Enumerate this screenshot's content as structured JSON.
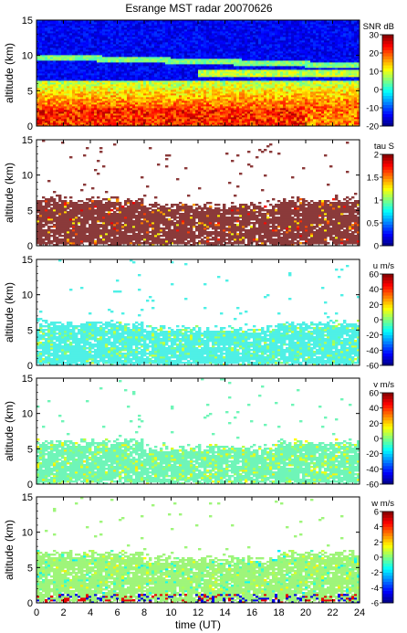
{
  "chart_data": {
    "type": "heatmap",
    "title": "Esrange MST radar 20070626",
    "xlabel": "time (UT)",
    "xlim": [
      0,
      24
    ],
    "x_ticks": [
      "0",
      "2",
      "4",
      "6",
      "8",
      "10",
      "12",
      "14",
      "16",
      "18",
      "20",
      "22",
      "24"
    ],
    "panels": [
      {
        "quantity": "SNR",
        "colorbar_label": "SNR dB",
        "ylabel": "altitude (km)",
        "ylim": [
          0,
          15
        ],
        "y_ticks": [
          "0",
          "5",
          "10",
          "15"
        ],
        "clim": [
          -20,
          30
        ],
        "colorbar_ticks": [
          "-20",
          "-10",
          "0",
          "10",
          "20",
          "30"
        ],
        "background_color": "#2a3fd8"
      },
      {
        "quantity": "tau",
        "colorbar_label": "tau S",
        "ylabel": "altitude (km)",
        "ylim": [
          0,
          15
        ],
        "y_ticks": [
          "0",
          "5",
          "10",
          "15"
        ],
        "clim": [
          0,
          2
        ],
        "colorbar_ticks": [
          "0",
          "0.5",
          "1",
          "1.5",
          "2"
        ],
        "data_top_km": 6.5,
        "dominant_color": "#8b3a3a"
      },
      {
        "quantity": "u",
        "colorbar_label": "u m/s",
        "ylabel": "altitude (km)",
        "ylim": [
          0,
          15
        ],
        "y_ticks": [
          "0",
          "5",
          "10",
          "15"
        ],
        "clim": [
          -60,
          60
        ],
        "colorbar_ticks": [
          "-60",
          "-40",
          "-20",
          "0",
          "20",
          "40",
          "60"
        ],
        "data_top_km": 6,
        "dominant_color": "#4ff0e6"
      },
      {
        "quantity": "v",
        "colorbar_label": "v m/s",
        "ylabel": "altitude (km)",
        "ylim": [
          0,
          15
        ],
        "y_ticks": [
          "0",
          "5",
          "10",
          "15"
        ],
        "clim": [
          -60,
          60
        ],
        "colorbar_ticks": [
          "-60",
          "-40",
          "-20",
          "0",
          "20",
          "40",
          "60"
        ],
        "data_top_km": 6,
        "dominant_color": "#6ff5b8"
      },
      {
        "quantity": "w",
        "colorbar_label": "w m/s",
        "ylabel": "altitude (km)",
        "ylim": [
          0,
          15
        ],
        "y_ticks": [
          "0",
          "5",
          "10",
          "15"
        ],
        "clim": [
          -6,
          6
        ],
        "colorbar_ticks": [
          "-6",
          "-4",
          "-2",
          "0",
          "2",
          "4",
          "6"
        ],
        "data_top_km": 7,
        "dominant_color": "#9ff57a"
      }
    ],
    "colormap": "jet",
    "grid": false
  }
}
